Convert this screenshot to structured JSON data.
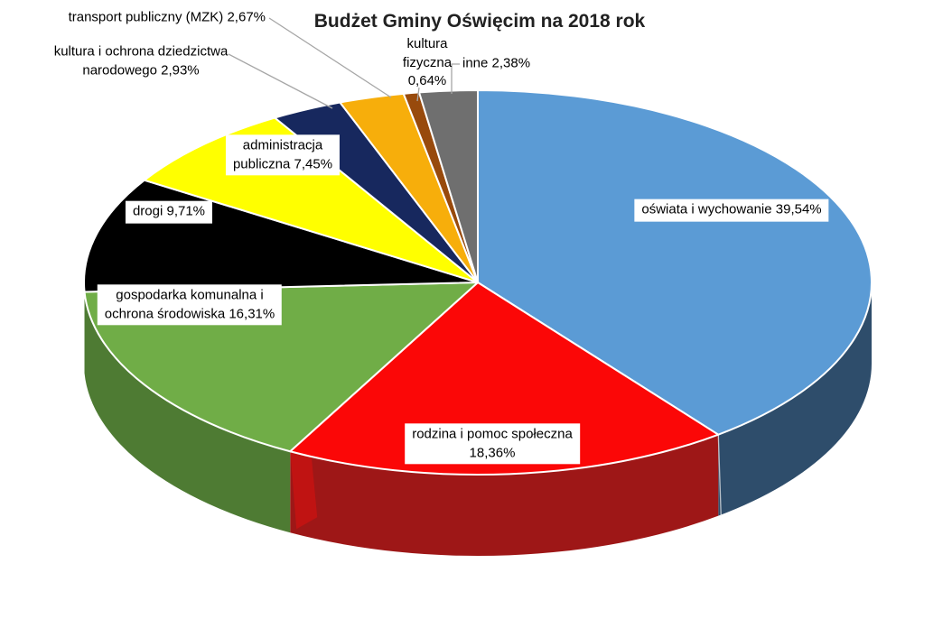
{
  "chart_data": {
    "type": "pie",
    "style": "3d",
    "title": "Budżet Gminy Oświęcim na 2018 rok",
    "unit": "%",
    "direction": "clockwise",
    "start_angle_deg": 0,
    "legend": "none",
    "slices": [
      {
        "label": "oświata i wychowanie",
        "value": 39.54,
        "value_label": "39,54%",
        "color": "#5B9BD5",
        "side_color": "#2E4D6B"
      },
      {
        "label": "rodzina i pomoc społeczna",
        "value": 18.36,
        "value_label": "18,36%",
        "color": "#FB0707",
        "side_color": "#9E1717"
      },
      {
        "label": "gospodarka komunalna i ochrona środowiska",
        "value": 16.31,
        "value_label": "16,31%",
        "color": "#70AD47",
        "side_color": "#4E7B33"
      },
      {
        "label": "drogi",
        "value": 9.71,
        "value_label": "9,71%",
        "color": "#000000"
      },
      {
        "label": "administracja publiczna",
        "value": 7.45,
        "value_label": "7,45%",
        "color": "#FFFF00"
      },
      {
        "label": "kultura i ochrona dziedzictwa narodowego",
        "value": 2.93,
        "value_label": "2,93%",
        "color": "#17285E"
      },
      {
        "label": "transport publiczny (MZK)",
        "value": 2.67,
        "value_label": "2,67%",
        "color": "#F7AE0B"
      },
      {
        "label": "kultura fizyczna",
        "value": 0.64,
        "value_label": "0,64%",
        "color": "#984A0C"
      },
      {
        "label": "inne",
        "value": 2.38,
        "value_label": "2,38%",
        "color": "#6F6F6F"
      }
    ]
  },
  "labels": {
    "oswiata": "oświata i wychowanie 39,54%",
    "rodzina": "rodzina i pomoc społeczna\n18,36%",
    "gospodarka": "gospodarka komunalna i\nochrona środowiska 16,31%",
    "drogi": "drogi 9,71%",
    "administracja": "administracja\npubliczna 7,45%",
    "dziedzictwa": "kultura i ochrona dziedzictwa\nnarodowego 2,93%",
    "transport": "transport publiczny (MZK) 2,67%",
    "fizyczna": "kultura\nfizyczna\n0,64%",
    "inne": "inne 2,38%"
  },
  "colors": {
    "leader_line": "#A6A6A6",
    "slice_border": "#FFFFFF",
    "title_text": "#212121",
    "label_text": "#000000",
    "label_box_bg": "#FFFFFF"
  }
}
